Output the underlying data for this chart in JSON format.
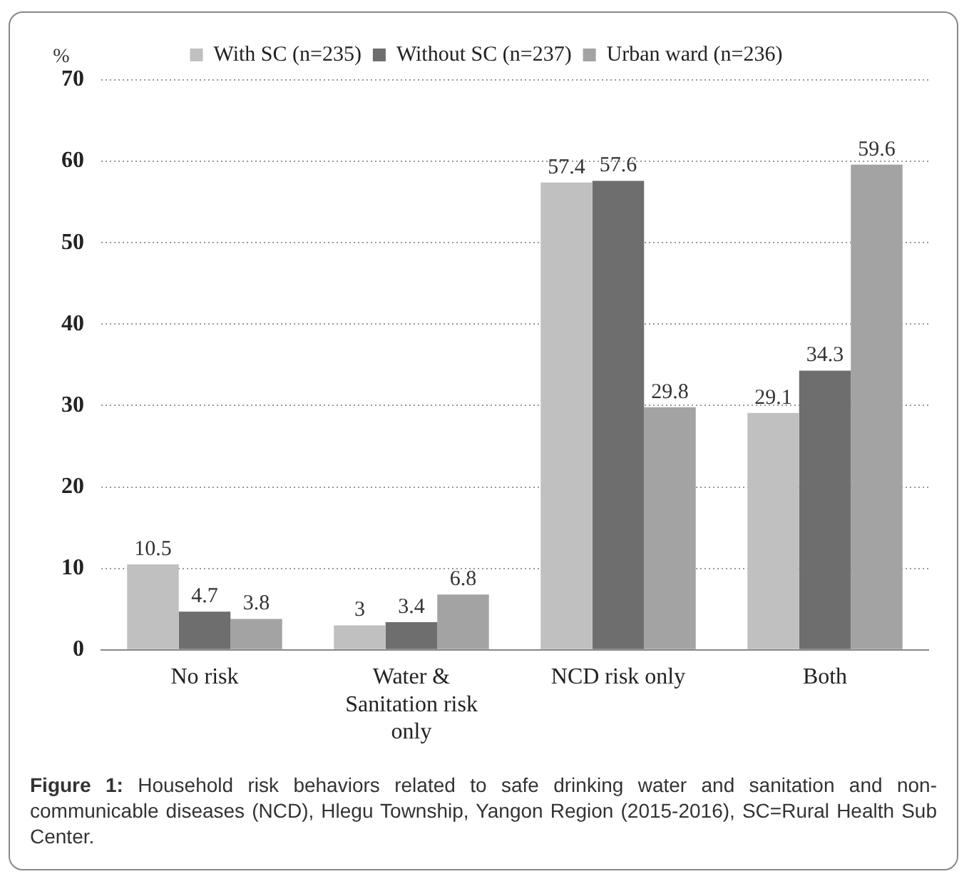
{
  "chart_data": {
    "type": "bar",
    "ylabel": "%",
    "categories": [
      "No risk",
      "Water & Sanitation risk only",
      "NCD risk only",
      "Both"
    ],
    "series": [
      {
        "name": "With SC (n=235)",
        "color": "#c0c0c0",
        "values": [
          10.5,
          3,
          57.4,
          29.1
        ]
      },
      {
        "name": "Without SC (n=237)",
        "color": "#6e6e6e",
        "values": [
          4.7,
          3.4,
          57.6,
          34.3
        ]
      },
      {
        "name": "Urban ward (n=236)",
        "color": "#a3a3a3",
        "values": [
          3.8,
          6.8,
          29.8,
          59.6
        ]
      }
    ],
    "ylim": [
      0,
      70
    ],
    "yticks": [
      0,
      10,
      20,
      30,
      40,
      50,
      60,
      70
    ],
    "grid": "y",
    "legend": "top",
    "data_labels": true,
    "annotations": [
      "Figure 1: Household risk behaviors related to safe drinking water and sanitation and non-communicable diseases (NCD), Hlegu Township, Yangon Region (2015-2016), SC=Rural Health Sub Center."
    ]
  }
}
